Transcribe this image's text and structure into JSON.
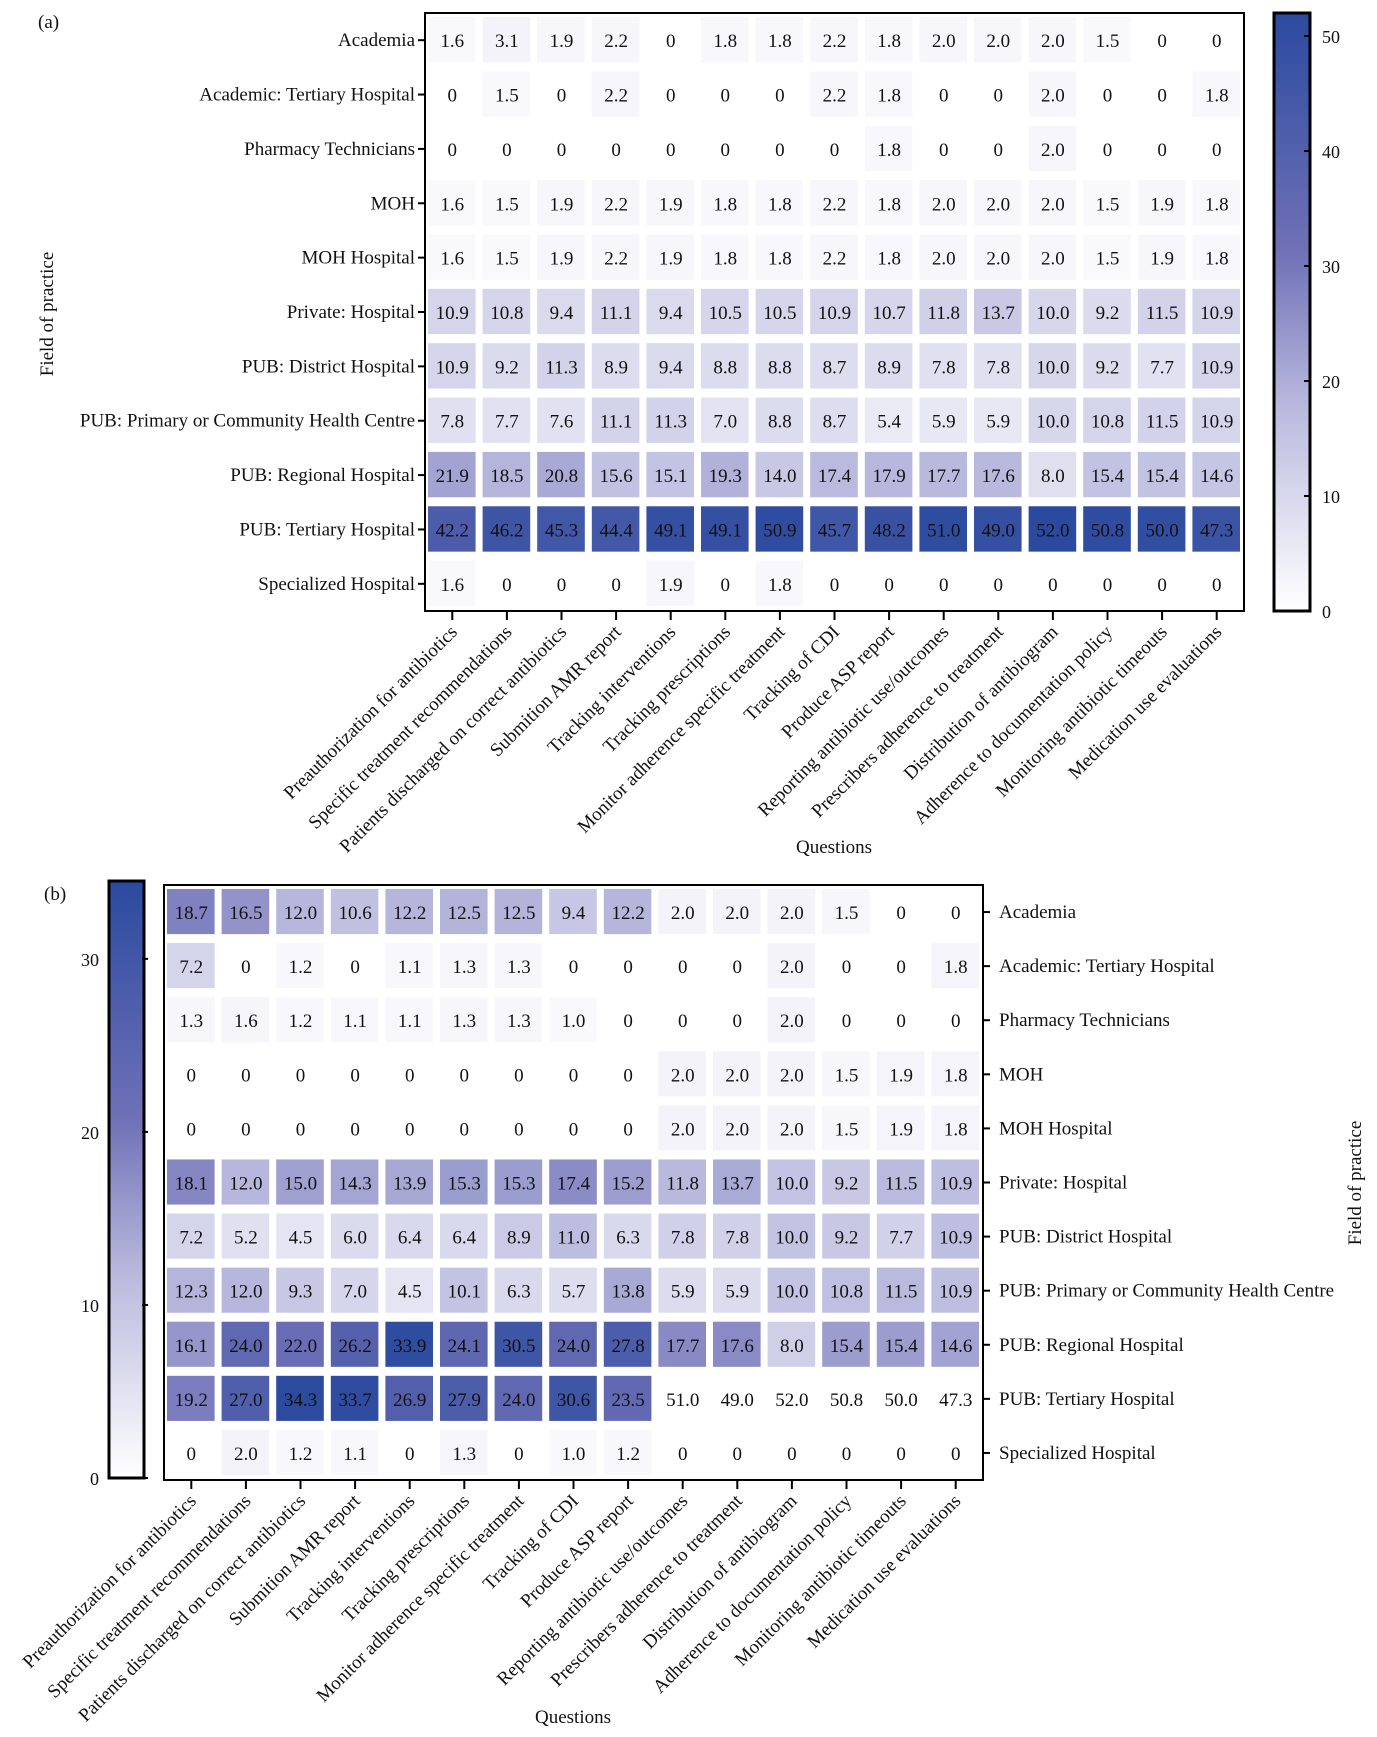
{
  "chart_data": [
    {
      "panel": "(a)",
      "type": "heatmap",
      "xlabel": "Questions",
      "ylabel": "Field of practice",
      "colorbar": {
        "range": [
          0,
          52
        ],
        "ticks": [
          0,
          10,
          20,
          30,
          40,
          50
        ],
        "position": "right",
        "colors": [
          "#ffffff",
          "#b7b7dd",
          "#7071b7",
          "#2b4a9f"
        ]
      },
      "rows": [
        "Academia",
        "Academic: Tertiary Hospital",
        "Pharmacy Technicians",
        "MOH",
        "MOH Hospital",
        "Private: Hospital",
        "PUB: District Hospital",
        "PUB: Primary or Community Health Centre",
        "PUB: Regional Hospital",
        "PUB: Tertiary Hospital",
        "Specialized Hospital"
      ],
      "columns": [
        "Preauthorization for antibiotics",
        "Specific treatment recommendations",
        "Patients discharged on correct antibiotics",
        "Submition AMR report",
        "Tracking interventions",
        "Tracking prescriptions",
        "Monitor adherence specific treatment",
        "Tracking of CDI",
        "Produce ASP report",
        "Reporting antibiotic use/outcomes",
        "Prescribers adherence to treatment",
        "Distribution of antibiogram",
        "Adherence to documentation policy",
        "Monitoring antibiotic timeouts",
        "Medication use evaluations"
      ],
      "values": [
        [
          1.6,
          3.1,
          1.9,
          2.2,
          0,
          1.8,
          1.8,
          2.2,
          1.8,
          2.0,
          2.0,
          2.0,
          1.5,
          0,
          0
        ],
        [
          0,
          1.5,
          0,
          2.2,
          0,
          0,
          0,
          2.2,
          1.8,
          0,
          0,
          2.0,
          0,
          0,
          1.8
        ],
        [
          0,
          0,
          0,
          0,
          0,
          0,
          0,
          0,
          1.8,
          0,
          0,
          2.0,
          0,
          0,
          0
        ],
        [
          1.6,
          1.5,
          1.9,
          2.2,
          1.9,
          1.8,
          1.8,
          2.2,
          1.8,
          2.0,
          2.0,
          2.0,
          1.5,
          1.9,
          1.8
        ],
        [
          1.6,
          1.5,
          1.9,
          2.2,
          1.9,
          1.8,
          1.8,
          2.2,
          1.8,
          2.0,
          2.0,
          2.0,
          1.5,
          1.9,
          1.8
        ],
        [
          10.9,
          10.8,
          9.4,
          11.1,
          9.4,
          10.5,
          10.5,
          10.9,
          10.7,
          11.8,
          13.7,
          10.0,
          9.2,
          11.5,
          10.9
        ],
        [
          10.9,
          9.2,
          11.3,
          8.9,
          9.4,
          8.8,
          8.8,
          8.7,
          8.9,
          7.8,
          7.8,
          10.0,
          9.2,
          7.7,
          10.9
        ],
        [
          7.8,
          7.7,
          7.6,
          11.1,
          11.3,
          7.0,
          8.8,
          8.7,
          5.4,
          5.9,
          5.9,
          10.0,
          10.8,
          11.5,
          10.9
        ],
        [
          21.9,
          18.5,
          20.8,
          15.6,
          15.1,
          19.3,
          14.0,
          17.4,
          17.9,
          17.7,
          17.6,
          8.0,
          15.4,
          15.4,
          14.6
        ],
        [
          42.2,
          46.2,
          45.3,
          44.4,
          49.1,
          49.1,
          50.9,
          45.7,
          48.2,
          51.0,
          49.0,
          52.0,
          50.8,
          50.0,
          47.3
        ],
        [
          1.6,
          0,
          0,
          0,
          1.9,
          0,
          1.8,
          0,
          0,
          0,
          0,
          0,
          0,
          0,
          0
        ]
      ],
      "labels": [
        [
          "1.6",
          "3.1",
          "1.9",
          "2.2",
          "0",
          "1.8",
          "1.8",
          "2.2",
          "1.8",
          "2.0",
          "2.0",
          "2.0",
          "1.5",
          "0",
          "0"
        ],
        [
          "0",
          "1.5",
          "0",
          "2.2",
          "0",
          "0",
          "0",
          "2.2",
          "1.8",
          "0",
          "0",
          "2.0",
          "0",
          "0",
          "1.8"
        ],
        [
          "0",
          "0",
          "0",
          "0",
          "0",
          "0",
          "0",
          "0",
          "1.8",
          "0",
          "0",
          "2.0",
          "0",
          "0",
          "0"
        ],
        [
          "1.6",
          "1.5",
          "1.9",
          "2.2",
          "1.9",
          "1.8",
          "1.8",
          "2.2",
          "1.8",
          "2.0",
          "2.0",
          "2.0",
          "1.5",
          "1.9",
          "1.8"
        ],
        [
          "1.6",
          "1.5",
          "1.9",
          "2.2",
          "1.9",
          "1.8",
          "1.8",
          "2.2",
          "1.8",
          "2.0",
          "2.0",
          "2.0",
          "1.5",
          "1.9",
          "1.8"
        ],
        [
          "10.9",
          "10.8",
          "9.4",
          "11.1",
          "9.4",
          "10.5",
          "10.5",
          "10.9",
          "10.7",
          "11.8",
          "13.7",
          "10.0",
          "9.2",
          "11.5",
          "10.9"
        ],
        [
          "10.9",
          "9.2",
          "11.3",
          "8.9",
          "9.4",
          "8.8",
          "8.8",
          "8.7",
          "8.9",
          "7.8",
          "7.8",
          "10.0",
          "9.2",
          "7.7",
          "10.9"
        ],
        [
          "7.8",
          "7.7",
          "7.6",
          "11.1",
          "11.3",
          "7.0",
          "8.8",
          "8.7",
          "5.4",
          "5.9",
          "5.9",
          "10.0",
          "10.8",
          "11.5",
          "10.9"
        ],
        [
          "21.9",
          "18.5",
          "20.8",
          "15.6",
          "15.1",
          "19.3",
          "14.0",
          "17.4",
          "17.9",
          "17.7",
          "17.6",
          "8.0",
          "15.4",
          "15.4",
          "14.6"
        ],
        [
          "42.2",
          "46.2",
          "45.3",
          "44.4",
          "49.1",
          "49.1",
          "50.9",
          "45.7",
          "48.2",
          "51.0",
          "49.0",
          "52.0",
          "50.8",
          "50.0",
          "47.3"
        ],
        [
          "1.6",
          "0",
          "0",
          "0",
          "1.9",
          "0",
          "1.8",
          "0",
          "0",
          "0",
          "0",
          "0",
          "0",
          "0",
          "0"
        ]
      ]
    },
    {
      "panel": "(b)",
      "type": "heatmap",
      "xlabel": "Questions",
      "ylabel": "Field of practice",
      "colorbar": {
        "range": [
          0,
          34.5
        ],
        "ticks": [
          0,
          10,
          20,
          30
        ],
        "position": "left",
        "colors": [
          "#ffffff",
          "#b7b7dd",
          "#7071b7",
          "#2b4a9f"
        ],
        "above_range_color": "#ffffff"
      },
      "rows": [
        "Academia",
        "Academic: Tertiary Hospital",
        "Pharmacy Technicians",
        "MOH",
        "MOH Hospital",
        "Private: Hospital",
        "PUB: District Hospital",
        "PUB: Primary or Community Health Centre",
        "PUB: Regional Hospital",
        "PUB: Tertiary Hospital",
        "Specialized Hospital"
      ],
      "columns": [
        "Preauthorization for antibiotics",
        "Specific treatment recommendations",
        "Patients discharged on correct antibiotics",
        "Submition AMR report",
        "Tracking interventions",
        "Tracking prescriptions",
        "Monitor adherence specific treatment",
        "Tracking of CDI",
        "Produce ASP report",
        "Reporting antibiotic use/outcomes",
        "Prescribers adherence to treatment",
        "Distribution of antibiogram",
        "Adherence to documentation policy",
        "Monitoring antibiotic timeouts",
        "Medication use evaluations"
      ],
      "values": [
        [
          18.7,
          16.5,
          12.0,
          10.6,
          12.2,
          12.5,
          12.5,
          9.4,
          12.2,
          2.0,
          2.0,
          2.0,
          1.5,
          0,
          0
        ],
        [
          7.2,
          0,
          1.2,
          0,
          1.1,
          1.3,
          1.3,
          0,
          0,
          0,
          0,
          2.0,
          0,
          0,
          1.8
        ],
        [
          1.3,
          1.6,
          1.2,
          1.1,
          1.1,
          1.3,
          1.3,
          1.0,
          0,
          0,
          0,
          2.0,
          0,
          0,
          0
        ],
        [
          0,
          0,
          0,
          0,
          0,
          0,
          0,
          0,
          0,
          2.0,
          2.0,
          2.0,
          1.5,
          1.9,
          1.8
        ],
        [
          0,
          0,
          0,
          0,
          0,
          0,
          0,
          0,
          0,
          2.0,
          2.0,
          2.0,
          1.5,
          1.9,
          1.8
        ],
        [
          18.1,
          12.0,
          15.0,
          14.3,
          13.9,
          15.3,
          15.3,
          17.4,
          15.2,
          11.8,
          13.7,
          10.0,
          9.2,
          11.5,
          10.9
        ],
        [
          7.2,
          5.2,
          4.5,
          6.0,
          6.4,
          6.4,
          8.9,
          11.0,
          6.3,
          7.8,
          7.8,
          10.0,
          9.2,
          7.7,
          10.9
        ],
        [
          12.3,
          12.0,
          9.3,
          7.0,
          4.5,
          10.1,
          6.3,
          5.7,
          13.8,
          5.9,
          5.9,
          10.0,
          10.8,
          11.5,
          10.9
        ],
        [
          16.1,
          24.0,
          22.0,
          26.2,
          33.9,
          24.1,
          30.5,
          24.0,
          27.8,
          17.7,
          17.6,
          8.0,
          15.4,
          15.4,
          14.6
        ],
        [
          19.2,
          27.0,
          34.3,
          33.7,
          26.9,
          27.9,
          24.0,
          30.6,
          23.5,
          51.0,
          49.0,
          52.0,
          50.8,
          50.0,
          47.3
        ],
        [
          0,
          2.0,
          1.2,
          1.1,
          0,
          1.3,
          0,
          1.0,
          1.2,
          0,
          0,
          0,
          0,
          0,
          0
        ]
      ],
      "labels": [
        [
          "18.7",
          "16.5",
          "12.0",
          "10.6",
          "12.2",
          "12.5",
          "12.5",
          "9.4",
          "12.2",
          "2.0",
          "2.0",
          "2.0",
          "1.5",
          "0",
          "0"
        ],
        [
          "7.2",
          "0",
          "1.2",
          "0",
          "1.1",
          "1.3",
          "1.3",
          "0",
          "0",
          "0",
          "0",
          "2.0",
          "0",
          "0",
          "1.8"
        ],
        [
          "1.3",
          "1.6",
          "1.2",
          "1.1",
          "1.1",
          "1.3",
          "1.3",
          "1.0",
          "0",
          "0",
          "0",
          "2.0",
          "0",
          "0",
          "0"
        ],
        [
          "0",
          "0",
          "0",
          "0",
          "0",
          "0",
          "0",
          "0",
          "0",
          "2.0",
          "2.0",
          "2.0",
          "1.5",
          "1.9",
          "1.8"
        ],
        [
          "0",
          "0",
          "0",
          "0",
          "0",
          "0",
          "0",
          "0",
          "0",
          "2.0",
          "2.0",
          "2.0",
          "1.5",
          "1.9",
          "1.8"
        ],
        [
          "18.1",
          "12.0",
          "15.0",
          "14.3",
          "13.9",
          "15.3",
          "15.3",
          "17.4",
          "15.2",
          "11.8",
          "13.7",
          "10.0",
          "9.2",
          "11.5",
          "10.9"
        ],
        [
          "7.2",
          "5.2",
          "4.5",
          "6.0",
          "6.4",
          "6.4",
          "8.9",
          "11.0",
          "6.3",
          "7.8",
          "7.8",
          "10.0",
          "9.2",
          "7.7",
          "10.9"
        ],
        [
          "12.3",
          "12.0",
          "9.3",
          "7.0",
          "4.5",
          "10.1",
          "6.3",
          "5.7",
          "13.8",
          "5.9",
          "5.9",
          "10.0",
          "10.8",
          "11.5",
          "10.9"
        ],
        [
          "16.1",
          "24.0",
          "22.0",
          "26.2",
          "33.9",
          "24.1",
          "30.5",
          "24.0",
          "27.8",
          "17.7",
          "17.6",
          "8.0",
          "15.4",
          "15.4",
          "14.6"
        ],
        [
          "19.2",
          "27.0",
          "34.3",
          "33.7",
          "26.9",
          "27.9",
          "24.0",
          "30.6",
          "23.5",
          "51.0",
          "49.0",
          "52.0",
          "50.8",
          "50.0",
          "47.3"
        ],
        [
          "0",
          "2.0",
          "1.2",
          "1.1",
          "0",
          "1.3",
          "0",
          "1.0",
          "1.2",
          "0",
          "0",
          "0",
          "0",
          "0",
          "0"
        ]
      ]
    }
  ]
}
